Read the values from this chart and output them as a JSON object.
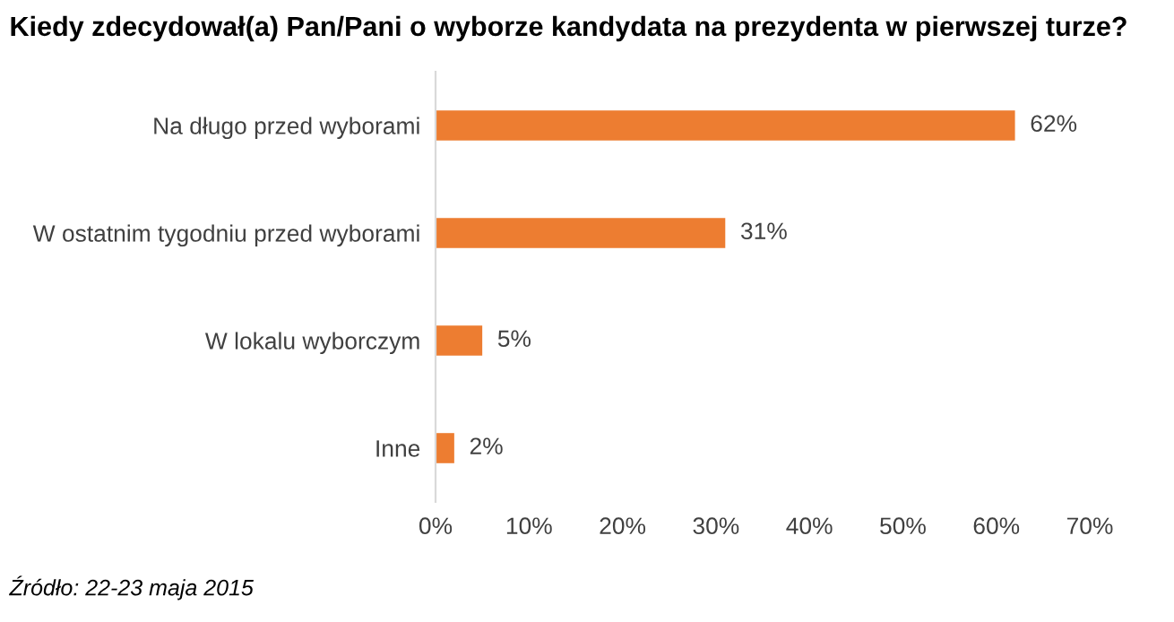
{
  "chart_data": {
    "type": "bar",
    "orientation": "horizontal",
    "title": "Kiedy zdecydował(a) Pan/Pani o wyborze kandydata na prezydenta w pierwszej turze?",
    "categories": [
      "Na długo przed wyborami",
      "W ostatnim tygodniu przed wyborami",
      "W lokalu wyborczym",
      "Inne"
    ],
    "values": [
      62,
      31,
      5,
      2
    ],
    "color": "#ed7d31",
    "value_labels": [
      "62%",
      "31%",
      "5%",
      "2%"
    ],
    "xlim": [
      0,
      70
    ],
    "xticks": [
      {
        "value": 0,
        "label": "0%"
      },
      {
        "value": 10,
        "label": "10%"
      },
      {
        "value": 20,
        "label": "20%"
      },
      {
        "value": 30,
        "label": "30%"
      },
      {
        "value": 40,
        "label": "40%"
      },
      {
        "value": 50,
        "label": "50%"
      },
      {
        "value": 60,
        "label": "60%"
      },
      {
        "value": 70,
        "label": "70%"
      }
    ],
    "grid": false,
    "legend": false,
    "annotations": [
      "Źródło: 22-23 maja 2015"
    ]
  }
}
